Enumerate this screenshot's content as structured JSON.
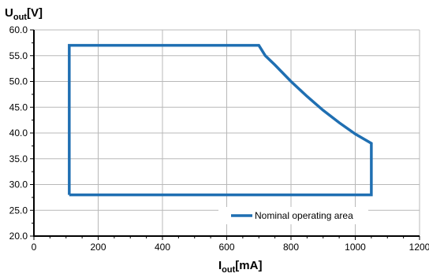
{
  "chart_data": {
    "type": "line",
    "title": "",
    "ylabel": {
      "main": "U",
      "sub": "out",
      "unit": "[V]"
    },
    "xlabel": {
      "main": "I",
      "sub": "out",
      "unit": "[mA]"
    },
    "xlim": [
      0,
      1200
    ],
    "ylim": [
      20,
      60
    ],
    "x_ticks": [
      0,
      200,
      400,
      600,
      800,
      1000,
      1200
    ],
    "x_tick_labels": [
      "0",
      "200",
      "400",
      "600",
      "800",
      "1000",
      "1200"
    ],
    "y_ticks": [
      20,
      25,
      30,
      35,
      40,
      45,
      50,
      55,
      60
    ],
    "y_tick_labels": [
      "20.0",
      "25.0",
      "30.0",
      "35.0",
      "40.0",
      "45.0",
      "50.0",
      "55.0",
      "60.0"
    ],
    "x_minor_step": 50,
    "y_minor_step": 2.5,
    "grid": true,
    "legend_position": "bottom-right",
    "series": [
      {
        "name": "Nominal operating area",
        "color": "#1f6fb2",
        "points": [
          [
            110,
            28
          ],
          [
            110,
            57
          ],
          [
            700,
            57
          ],
          [
            720,
            55
          ],
          [
            750,
            53.2
          ],
          [
            800,
            50
          ],
          [
            850,
            47.1
          ],
          [
            900,
            44.4
          ],
          [
            950,
            42
          ],
          [
            1000,
            39.8
          ],
          [
            1050,
            38
          ],
          [
            1050,
            28
          ],
          [
            110,
            28
          ]
        ]
      }
    ]
  }
}
